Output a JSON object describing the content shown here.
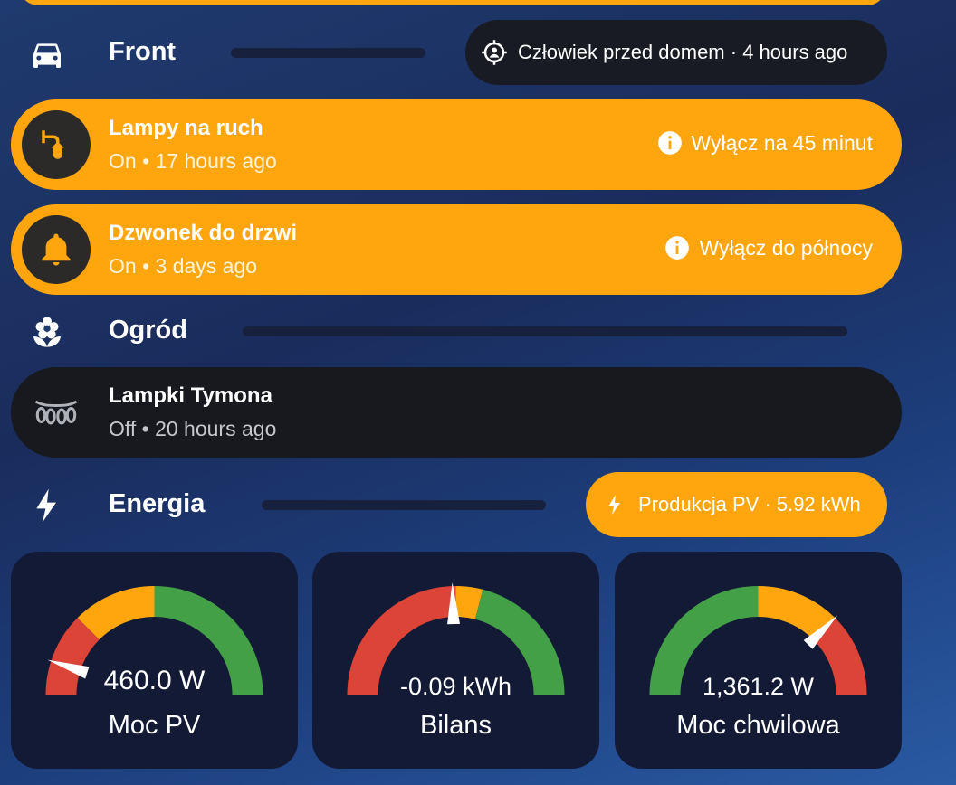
{
  "sections": {
    "front": {
      "title": "Front",
      "icon": "car-icon"
    },
    "garden": {
      "title": "Ogród",
      "icon": "flower-icon"
    },
    "energy": {
      "title": "Energia",
      "icon": "lightning-icon"
    }
  },
  "chips": {
    "person": {
      "icon": "person-target-icon",
      "text": "Człowiek przed domem · 4 hours ago"
    },
    "pv": {
      "icon": "lightning-icon",
      "text": "Produkcja PV · 5.92 kWh"
    }
  },
  "entities": [
    {
      "name": "Lampy na ruch",
      "state": "On • 17 hours ago",
      "action": "Wyłącz na 45 minut",
      "icon": "wall-lamp-icon"
    },
    {
      "name": "Dzwonek do drzwi",
      "state": "On • 3 days ago",
      "action": "Wyłącz do północy",
      "icon": "bell-icon"
    },
    {
      "name": "Lampki Tymona",
      "state": "Off • 20 hours ago",
      "icon": "string-lights-icon"
    }
  ],
  "gauges": [
    {
      "label": "Moc PV",
      "value_text": "460.0 W",
      "needle_fraction": 0.1,
      "segments": [
        {
          "from": 0,
          "to": 0.25,
          "color": "#db4437"
        },
        {
          "from": 0.25,
          "to": 0.5,
          "color": "#ffa60f"
        },
        {
          "from": 0.5,
          "to": 1,
          "color": "#43a047"
        }
      ]
    },
    {
      "label": "Bilans",
      "value_text": "-0.09 kWh",
      "needle_fraction": 0.49,
      "segments": [
        {
          "from": 0,
          "to": 0.5,
          "color": "#db4437"
        },
        {
          "from": 0.5,
          "to": 0.58,
          "color": "#ffa60f"
        },
        {
          "from": 0.58,
          "to": 1,
          "color": "#43a047"
        }
      ]
    },
    {
      "label": "Moc chwilowa",
      "value_text": "1,361.2 W",
      "needle_fraction": 0.75,
      "segments": [
        {
          "from": 0,
          "to": 0.5,
          "color": "#43a047"
        },
        {
          "from": 0.5,
          "to": 0.75,
          "color": "#ffa60f"
        },
        {
          "from": 0.75,
          "to": 1,
          "color": "#db4437"
        }
      ]
    }
  ],
  "colors": {
    "accent": "#ffa60f",
    "dark_row": "#17191f",
    "gauge_card": "#131a36"
  }
}
